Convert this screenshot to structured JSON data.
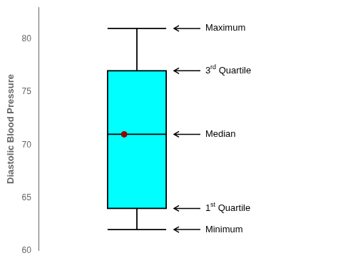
{
  "chart_data": {
    "type": "box",
    "ylabel": "Diastolic Blood Pressure",
    "min": 62,
    "q1": 64,
    "median": 71,
    "q3": 77,
    "max": 81,
    "mean": {
      "value": 71,
      "color": "#990000"
    },
    "color": "#00FFFF",
    "ylim": [
      60,
      83
    ],
    "yticks": [
      60,
      65,
      70,
      75,
      80
    ],
    "grid": false,
    "tick_labels": "y",
    "annotations": [
      {
        "text": "Maximum",
        "y": 81
      },
      {
        "text": "3rd Quartile",
        "y": 77
      },
      {
        "text": "Median",
        "y": 71
      },
      {
        "text": "1st Quartile",
        "y": 64
      },
      {
        "text": "Minimum",
        "y": 62
      }
    ]
  }
}
